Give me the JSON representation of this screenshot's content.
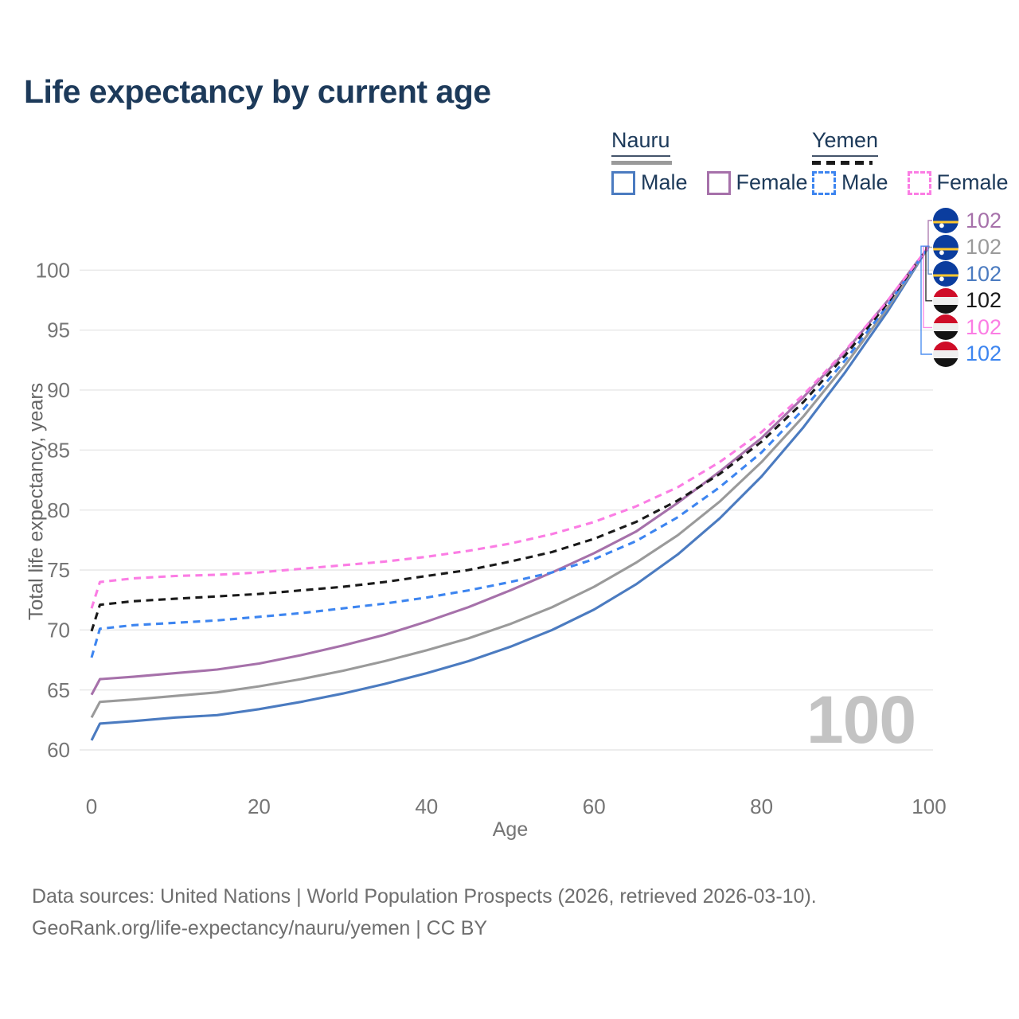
{
  "title": "Life expectancy by current age",
  "legend": {
    "groups": [
      {
        "label": "Nauru",
        "line_style": "solid",
        "sample_color": "#9a9a9a",
        "items": [
          {
            "label": "Male",
            "color": "#4b7bc0"
          },
          {
            "label": "Female",
            "color": "#a671aa"
          }
        ]
      },
      {
        "label": "Yemen",
        "line_style": "dashed",
        "sample_color": "#1a1a1a",
        "items": [
          {
            "label": "Male",
            "color": "#3d85f0"
          },
          {
            "label": "Female",
            "color": "#fb7de4"
          }
        ]
      }
    ]
  },
  "watermark": "100",
  "chart_data": {
    "type": "line",
    "title": "Life expectancy by current age",
    "xlabel": "Age",
    "ylabel": "Total life expectancy, years",
    "xlim": [
      0,
      100
    ],
    "ylim": [
      60,
      102
    ],
    "x_ticks": [
      0,
      20,
      40,
      60,
      80,
      100
    ],
    "y_ticks": [
      60,
      65,
      70,
      75,
      80,
      85,
      90,
      95,
      100
    ],
    "grid": "horizontal",
    "legend_position": "top-right",
    "x": [
      0,
      1,
      5,
      10,
      15,
      20,
      25,
      30,
      35,
      40,
      45,
      50,
      55,
      60,
      65,
      70,
      75,
      80,
      85,
      90,
      95,
      100
    ],
    "series": [
      {
        "name": "Nauru Male",
        "country": "Nauru",
        "sex": "Male",
        "color": "#4b7bc0",
        "dash": false,
        "values": [
          60.8,
          62.2,
          62.4,
          62.7,
          62.9,
          63.4,
          64.0,
          64.7,
          65.5,
          66.4,
          67.4,
          68.6,
          70.0,
          71.7,
          73.8,
          76.3,
          79.3,
          82.8,
          86.9,
          91.5,
          96.5,
          102
        ]
      },
      {
        "name": "Nauru Total",
        "country": "Nauru",
        "sex": "Total",
        "color": "#9a9a9a",
        "dash": false,
        "values": [
          62.7,
          64.0,
          64.2,
          64.5,
          64.8,
          65.3,
          65.9,
          66.6,
          67.4,
          68.3,
          69.3,
          70.5,
          71.9,
          73.6,
          75.6,
          77.9,
          80.7,
          84.0,
          87.8,
          92.1,
          96.8,
          102
        ]
      },
      {
        "name": "Nauru Female",
        "country": "Nauru",
        "sex": "Female",
        "color": "#a671aa",
        "dash": false,
        "values": [
          64.6,
          65.9,
          66.1,
          66.4,
          66.7,
          67.2,
          67.9,
          68.7,
          69.6,
          70.7,
          71.9,
          73.3,
          74.8,
          76.4,
          78.2,
          80.6,
          83.2,
          86.0,
          89.4,
          93.2,
          97.4,
          102
        ]
      },
      {
        "name": "Yemen Male",
        "country": "Yemen",
        "sex": "Male",
        "color": "#3d85f0",
        "dash": true,
        "values": [
          67.7,
          70.1,
          70.4,
          70.6,
          70.8,
          71.1,
          71.4,
          71.8,
          72.2,
          72.7,
          73.3,
          74.0,
          74.8,
          75.9,
          77.4,
          79.4,
          81.9,
          84.8,
          88.4,
          92.5,
          97.0,
          102
        ]
      },
      {
        "name": "Yemen Total",
        "country": "Yemen",
        "sex": "Total",
        "color": "#1a1a1a",
        "dash": true,
        "values": [
          69.9,
          72.1,
          72.4,
          72.6,
          72.8,
          73.0,
          73.3,
          73.6,
          74.0,
          74.5,
          75.0,
          75.7,
          76.5,
          77.6,
          79.0,
          80.8,
          83.0,
          85.7,
          89.0,
          92.9,
          97.2,
          102
        ]
      },
      {
        "name": "Yemen Female",
        "country": "Yemen",
        "sex": "Female",
        "color": "#fb7de4",
        "dash": true,
        "values": [
          71.8,
          74.0,
          74.3,
          74.5,
          74.6,
          74.8,
          75.1,
          75.4,
          75.7,
          76.1,
          76.6,
          77.2,
          78.0,
          79.0,
          80.3,
          81.9,
          84.0,
          86.5,
          89.6,
          93.3,
          97.4,
          102
        ]
      }
    ]
  },
  "callouts": [
    {
      "flag": "nauru",
      "value": "102",
      "color": "#a671aa",
      "series": "Nauru Female"
    },
    {
      "flag": "nauru",
      "value": "102",
      "color": "#9a9a9a",
      "series": "Nauru Total"
    },
    {
      "flag": "nauru",
      "value": "102",
      "color": "#4b7bc0",
      "series": "Nauru Male"
    },
    {
      "flag": "yemen",
      "value": "102",
      "color": "#1a1a1a",
      "series": "Yemen Total"
    },
    {
      "flag": "yemen",
      "value": "102",
      "color": "#fb7de4",
      "series": "Yemen Female"
    },
    {
      "flag": "yemen",
      "value": "102",
      "color": "#3d85f0",
      "series": "Yemen Male"
    }
  ],
  "footer": {
    "line1": "Data sources: United Nations | World Population Prospects (2026, retrieved 2026-03-10).",
    "line2": "GeoRank.org/life-expectancy/nauru/yemen | CC BY"
  }
}
